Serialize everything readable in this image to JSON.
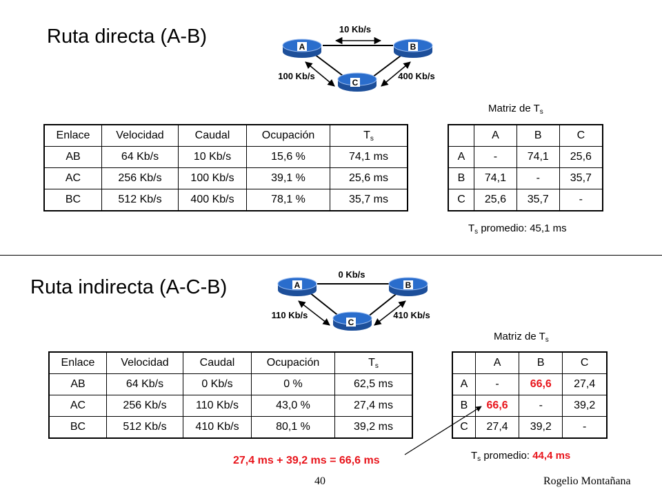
{
  "top": {
    "title": "Ruta directa (A-B)",
    "network": {
      "routers": [
        "A",
        "B",
        "C"
      ],
      "links": {
        "ab": "10 Kb/s",
        "ac": "100 Kb/s",
        "bc": "400 Kb/s"
      }
    },
    "table": {
      "headers": [
        "Enlace",
        "Velocidad",
        "Caudal",
        "Ocupación",
        "T",
        "s"
      ],
      "rows": [
        [
          "AB",
          "64 Kb/s",
          "10 Kb/s",
          "15,6 %",
          "74,1 ms"
        ],
        [
          "AC",
          "256 Kb/s",
          "100 Kb/s",
          "39,1 %",
          "25,6 ms"
        ],
        [
          "BC",
          "512 Kb/s",
          "400 Kb/s",
          "78,1 %",
          "35,7 ms"
        ]
      ]
    },
    "matrix": {
      "title": "Matriz de T",
      "title_sub": "s",
      "cols": [
        "A",
        "B",
        "C"
      ],
      "rows": [
        [
          "A",
          "-",
          "74,1",
          "25,6"
        ],
        [
          "B",
          "74,1",
          "-",
          "35,7"
        ],
        [
          "C",
          "25,6",
          "35,7",
          "-"
        ]
      ],
      "avg_prefix": "T",
      "avg_sub": "s",
      "avg_label": " promedio: ",
      "avg_value": "45,1 ms"
    }
  },
  "bottom": {
    "title": "Ruta indirecta (A-C-B)",
    "network": {
      "routers": [
        "A",
        "B",
        "C"
      ],
      "links": {
        "ab": "0 Kb/s",
        "ac": "110 Kb/s",
        "bc": "410 Kb/s"
      }
    },
    "table": {
      "headers": [
        "Enlace",
        "Velocidad",
        "Caudal",
        "Ocupación",
        "T",
        "s"
      ],
      "rows": [
        [
          "AB",
          "64 Kb/s",
          "0 Kb/s",
          "0 %",
          "62,5 ms"
        ],
        [
          "AC",
          "256 Kb/s",
          "110 Kb/s",
          "43,0 %",
          "27,4 ms"
        ],
        [
          "BC",
          "512 Kb/s",
          "410 Kb/s",
          "80,1 %",
          "39,2 ms"
        ]
      ]
    },
    "matrix": {
      "title": "Matriz de T",
      "title_sub": "s",
      "cols": [
        "A",
        "B",
        "C"
      ],
      "rows": [
        [
          "A",
          "-",
          "66,6",
          "27,4"
        ],
        [
          "B",
          "66,6",
          "-",
          "39,2"
        ],
        [
          "C",
          "27,4",
          "39,2",
          "-"
        ]
      ],
      "avg_prefix": "T",
      "avg_sub": "s",
      "avg_label": " promedio: ",
      "avg_value": "44,4 ms"
    },
    "sum_note": "27,4 ms + 39,2 ms = 66,6 ms"
  },
  "footer": {
    "page": "40",
    "author": "Rogelio Montañana"
  },
  "colors": {
    "router_top": "#2a6dcc",
    "router_side": "#1d4f9a",
    "highlight": "#e8141b"
  }
}
